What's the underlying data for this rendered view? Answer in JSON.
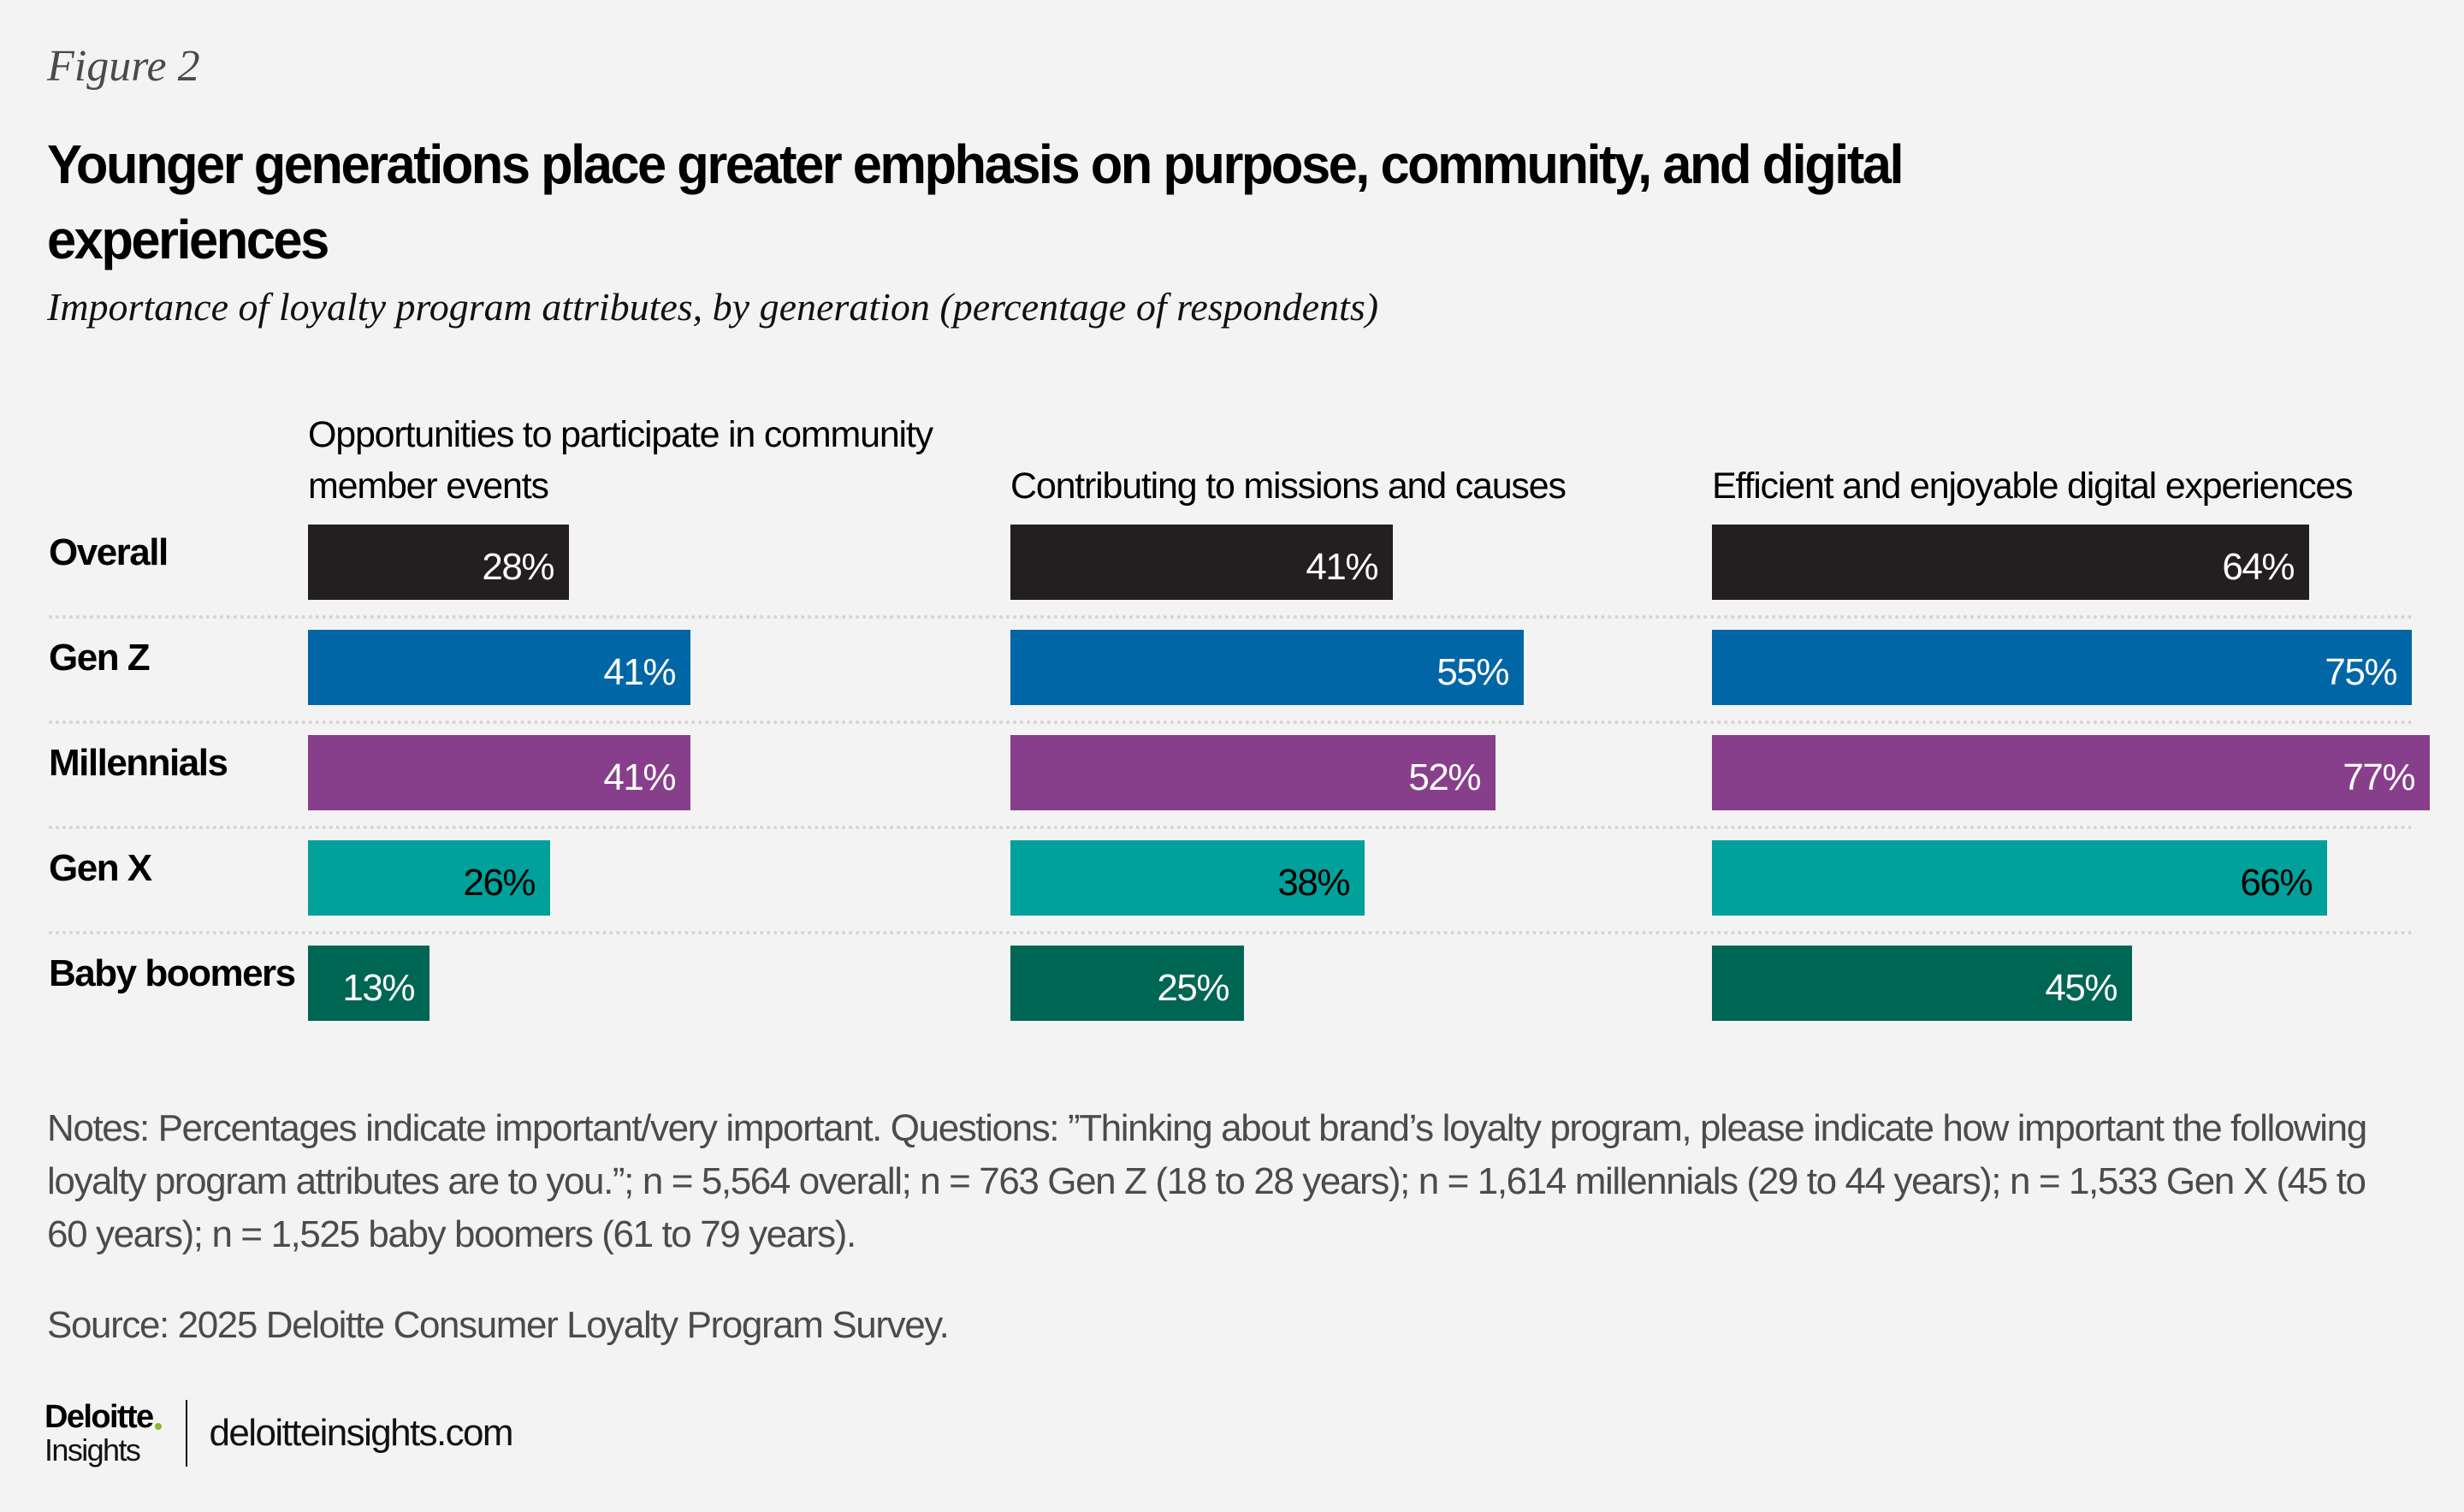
{
  "figure_label": "Figure 2",
  "title": "Younger generations place greater emphasis on purpose, community, and digital experiences",
  "subtitle": "Importance of loyalty program attributes, by generation (percentage of respondents)",
  "chart_data": {
    "type": "bar",
    "orientation": "horizontal",
    "layout": "small-multiples",
    "title": "Younger generations place greater emphasis on purpose, community, and digital experiences",
    "subtitle": "Importance of loyalty program attributes, by generation (percentage of respondents)",
    "unit": "%",
    "xlim": [
      0,
      100
    ],
    "grid": false,
    "legend": "none",
    "categories": [
      "Overall",
      "Gen Z",
      "Millennials",
      "Gen X",
      "Baby boomers"
    ],
    "category_colors": [
      "#231f20",
      "#0066a6",
      "#883f8b",
      "#00a19a",
      "#006654"
    ],
    "label_colors": [
      "#ffffff",
      "#ffffff",
      "#ffffff",
      "#000000",
      "#ffffff"
    ],
    "panels": [
      {
        "title": "Opportunities to participate in community member events",
        "values": [
          28,
          41,
          41,
          26,
          13
        ],
        "labels": [
          "28%",
          "41%",
          "41%",
          "26%",
          "13%"
        ]
      },
      {
        "title": "Contributing to missions and causes",
        "values": [
          41,
          55,
          52,
          38,
          25
        ],
        "labels": [
          "41%",
          "55%",
          "52%",
          "38%",
          "25%"
        ]
      },
      {
        "title": "Efficient and enjoyable digital experiences",
        "values": [
          64,
          75,
          77,
          66,
          45
        ],
        "labels": [
          "64%",
          "75%",
          "77%",
          "66%",
          "45%"
        ]
      }
    ]
  },
  "notes": "Notes: Percentages indicate important/very important. Questions: ”Thinking about brand’s loyalty program, please indicate how important the following loyalty program attributes are to you.”; n = 5,564 overall; n = 763 Gen Z (18 to 28 years); n = 1,614 millennials (29 to 44 years); n = 1,533 Gen X (45 to 60 years); n = 1,525 baby boomers (61 to 79 years).",
  "source": "Source: 2025 Deloitte Consumer Loyalty Program Survey.",
  "footer": {
    "logo_brand": "Deloitte",
    "logo_sub": "Insights",
    "logo_dot_color": "#86bc25",
    "url": "deloitteinsights.com"
  }
}
